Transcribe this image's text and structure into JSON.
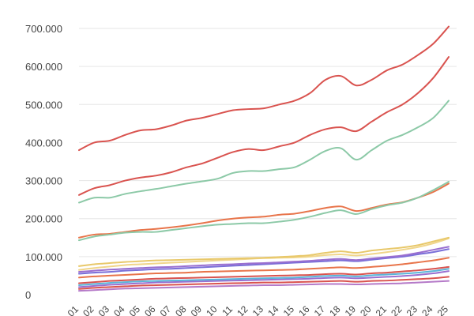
{
  "chart_data": {
    "type": "line",
    "title": "",
    "xlabel": "",
    "ylabel": "",
    "ylim": [
      0,
      700000
    ],
    "yticks": [
      {
        "value": 0,
        "label": "0"
      },
      {
        "value": 100000,
        "label": "100.000"
      },
      {
        "value": 200000,
        "label": "200.000"
      },
      {
        "value": 300000,
        "label": "300.000"
      },
      {
        "value": 400000,
        "label": "400.000"
      },
      {
        "value": 500000,
        "label": "500.000"
      },
      {
        "value": 600000,
        "label": "600.000"
      },
      {
        "value": 700000,
        "label": "700.000"
      }
    ],
    "grid": true,
    "legend": "none",
    "x": [
      1,
      2,
      3,
      4,
      5,
      6,
      7,
      8,
      9,
      10,
      11,
      12,
      13,
      14,
      15,
      16,
      17,
      18,
      19,
      20,
      21,
      22,
      23,
      24,
      25
    ],
    "xticks": [
      "01",
      "02",
      "03",
      "04",
      "05",
      "06",
      "07",
      "08",
      "09",
      "10",
      "11",
      "12",
      "13",
      "14",
      "15",
      "16",
      "17",
      "18",
      "19",
      "20",
      "21",
      "22",
      "23",
      "24",
      "25"
    ],
    "series": [
      {
        "color": "#d9534f",
        "values": [
          380000,
          400000,
          405000,
          420000,
          432000,
          435000,
          445000,
          458000,
          465000,
          475000,
          485000,
          488000,
          490000,
          500000,
          510000,
          530000,
          565000,
          575000,
          550000,
          565000,
          590000,
          605000,
          630000,
          660000,
          705000
        ]
      },
      {
        "color": "#d9534f",
        "values": [
          262000,
          280000,
          288000,
          300000,
          308000,
          313000,
          322000,
          335000,
          345000,
          360000,
          375000,
          383000,
          380000,
          390000,
          400000,
          420000,
          435000,
          440000,
          430000,
          455000,
          480000,
          500000,
          530000,
          570000,
          625000
        ]
      },
      {
        "color": "#8cc9a7",
        "values": [
          242000,
          255000,
          255000,
          265000,
          272000,
          278000,
          285000,
          292000,
          298000,
          305000,
          320000,
          325000,
          325000,
          330000,
          335000,
          355000,
          378000,
          385000,
          355000,
          380000,
          405000,
          420000,
          440000,
          465000,
          510000
        ]
      },
      {
        "color": "#8cc9a7",
        "values": [
          143000,
          153000,
          158000,
          163000,
          165000,
          165000,
          170000,
          175000,
          180000,
          184000,
          186000,
          188000,
          188000,
          192000,
          197000,
          205000,
          215000,
          222000,
          212000,
          225000,
          235000,
          242000,
          255000,
          275000,
          297000
        ]
      },
      {
        "color": "#e8744a",
        "values": [
          150000,
          158000,
          160000,
          165000,
          170000,
          173000,
          177000,
          182000,
          188000,
          195000,
          200000,
          203000,
          205000,
          210000,
          213000,
          220000,
          228000,
          232000,
          220000,
          228000,
          237000,
          243000,
          255000,
          270000,
          292000
        ]
      },
      {
        "color": "#e8c86a",
        "values": [
          75000,
          80000,
          83000,
          86000,
          88000,
          90000,
          91000,
          92000,
          93000,
          94000,
          95000,
          96000,
          97000,
          99000,
          101000,
          104000,
          110000,
          114000,
          110000,
          116000,
          120000,
          124000,
          130000,
          140000,
          150000
        ]
      },
      {
        "color": "#f0d58a",
        "values": [
          65000,
          70000,
          74000,
          78000,
          80000,
          82000,
          84000,
          86000,
          88000,
          90000,
          92000,
          94000,
          96000,
          97000,
          98000,
          100000,
          104000,
          106000,
          103000,
          107000,
          112000,
          118000,
          125000,
          135000,
          148000
        ]
      },
      {
        "color": "#9a6fd0",
        "values": [
          60000,
          63000,
          66000,
          68000,
          70000,
          72000,
          73000,
          75000,
          77000,
          79000,
          80000,
          82000,
          83000,
          85000,
          87000,
          89000,
          92000,
          94000,
          91000,
          95000,
          99000,
          103000,
          110000,
          118000,
          126000
        ]
      },
      {
        "color": "#7a6fd8",
        "values": [
          55000,
          58000,
          60000,
          63000,
          65000,
          67000,
          68000,
          70000,
          72000,
          74000,
          76000,
          78000,
          80000,
          82000,
          84000,
          86000,
          88000,
          90000,
          88000,
          92000,
          96000,
          100000,
          106000,
          112000,
          120000
        ]
      },
      {
        "color": "#e8744a",
        "values": [
          45000,
          48000,
          50000,
          52000,
          54000,
          56000,
          57000,
          58000,
          60000,
          61000,
          62000,
          63000,
          64000,
          65000,
          66000,
          68000,
          70000,
          72000,
          70000,
          73000,
          76000,
          80000,
          85000,
          90000,
          97000
        ]
      },
      {
        "color": "#d9534f",
        "values": [
          30000,
          33000,
          36000,
          38000,
          40000,
          42000,
          43000,
          44000,
          45000,
          46000,
          47000,
          48000,
          49000,
          50000,
          51000,
          52000,
          54000,
          55000,
          53000,
          56000,
          58000,
          61000,
          64000,
          68000,
          73000
        ]
      },
      {
        "color": "#5ab4d8",
        "values": [
          25000,
          28000,
          31000,
          33000,
          35000,
          36000,
          37000,
          38000,
          39000,
          40000,
          41000,
          42000,
          43000,
          44000,
          45000,
          47000,
          49000,
          50000,
          48000,
          51000,
          53000,
          55000,
          58000,
          62000,
          68000
        ]
      },
      {
        "color": "#9a6fd0",
        "values": [
          20000,
          23000,
          26000,
          28000,
          30000,
          32000,
          33000,
          34000,
          35000,
          36000,
          37000,
          38000,
          39000,
          40000,
          41000,
          42000,
          44000,
          45000,
          43000,
          45000,
          47000,
          49000,
          52000,
          56000,
          62000
        ]
      },
      {
        "color": "#d9534f",
        "values": [
          15000,
          18000,
          20000,
          22000,
          24000,
          25000,
          26000,
          27000,
          28000,
          29000,
          30000,
          31000,
          32000,
          32000,
          33000,
          34000,
          35000,
          36000,
          34000,
          36000,
          37000,
          39000,
          41000,
          43000,
          47000
        ]
      },
      {
        "color": "#b57ac8",
        "values": [
          10000,
          12000,
          14000,
          16000,
          17000,
          18000,
          19000,
          20000,
          21000,
          22000,
          23000,
          24000,
          25000,
          25000,
          26000,
          27000,
          28000,
          28000,
          27000,
          28000,
          29000,
          30000,
          32000,
          34000,
          36000
        ]
      }
    ]
  }
}
